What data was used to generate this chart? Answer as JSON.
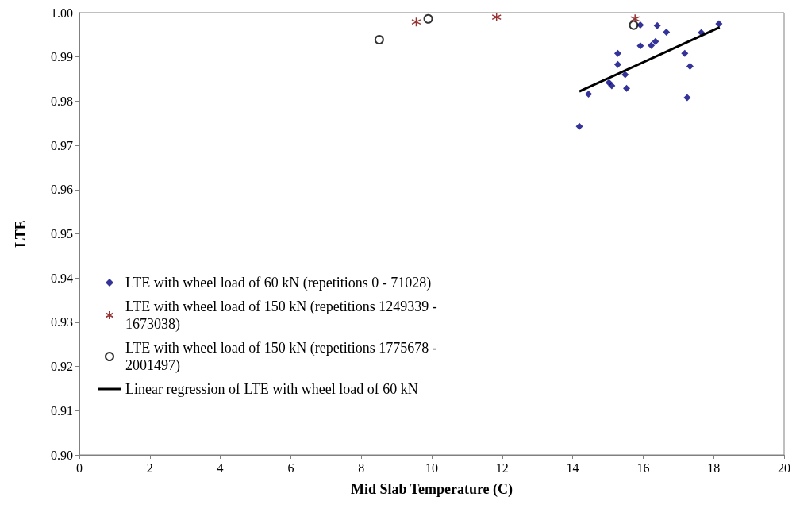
{
  "chart_data": {
    "type": "scatter",
    "xlabel": "Mid Slab Temperature (C)",
    "ylabel": "LTE",
    "xlim": [
      0,
      20
    ],
    "xticks": [
      0,
      2,
      4,
      6,
      8,
      10,
      12,
      14,
      16,
      18,
      20
    ],
    "ylim": [
      0.9,
      1.0
    ],
    "yticks": [
      {
        "value": 0.9,
        "label": "0.90"
      },
      {
        "value": 0.91,
        "label": "0.91"
      },
      {
        "value": 0.92,
        "label": "0.92"
      },
      {
        "value": 0.93,
        "label": "0.93"
      },
      {
        "value": 0.94,
        "label": "0.94"
      },
      {
        "value": 0.95,
        "label": "0.95"
      },
      {
        "value": 0.96,
        "label": "0.96"
      },
      {
        "value": 0.97,
        "label": "0.97"
      },
      {
        "value": 0.98,
        "label": "0.98"
      },
      {
        "value": 0.99,
        "label": "0.99"
      },
      {
        "value": 1.0,
        "label": "1.00"
      }
    ],
    "grid": false,
    "legend": "bottom left",
    "series": [
      {
        "name": "LTE with wheel load of 60 kN (repetitions 0 - 71028)",
        "marker": "diamond",
        "color": "#000080",
        "x": [
          14.19,
          14.45,
          15.03,
          15.11,
          15.53,
          15.49,
          15.28,
          15.28,
          15.92,
          16.23,
          16.35,
          15.92,
          16.4,
          16.66,
          17.18,
          17.33,
          17.25,
          17.65,
          18.15
        ],
        "values": [
          0.9743,
          0.9816,
          0.9842,
          0.9835,
          0.9829,
          0.986,
          0.9883,
          0.9908,
          0.9925,
          0.9926,
          0.9935,
          0.9972,
          0.9971,
          0.9956,
          0.9908,
          0.9879,
          0.9808,
          0.9955,
          0.9975
        ]
      },
      {
        "name": "LTE with wheel load of 150 kN (repetitions 1249339 - 1673038)",
        "marker": "cross",
        "color": "#800000",
        "x": [
          9.56,
          11.84,
          15.77
        ],
        "values": [
          0.9979,
          0.999,
          0.9986
        ]
      },
      {
        "name": "LTE with wheel load of 150 kN (repetitions 1775678 - 2001497)",
        "marker": "circle",
        "color": "#000000",
        "x": [
          8.51,
          9.9,
          15.73
        ],
        "values": [
          0.9939,
          0.9986,
          0.9972
        ]
      },
      {
        "name": "Linear regression of LTE with wheel load of 60 kN",
        "type": "line",
        "marker": "none",
        "line_style": "solid",
        "color": "#000000",
        "x": [
          14.19,
          18.17
        ],
        "values": [
          0.9822,
          0.9967
        ]
      }
    ]
  }
}
